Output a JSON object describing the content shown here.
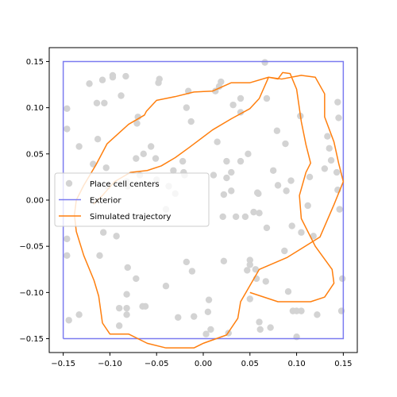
{
  "chart_data": {
    "type": "scatter",
    "xlim": [
      -0.165,
      0.165
    ],
    "ylim": [
      -0.165,
      0.165
    ],
    "xticks": [
      -0.15,
      -0.1,
      -0.05,
      0.0,
      0.05,
      0.1,
      0.15
    ],
    "yticks": [
      -0.15,
      -0.1,
      -0.05,
      0.0,
      0.05,
      0.1,
      0.15
    ],
    "xtick_labels": [
      "−0.15",
      "−0.10",
      "−0.05",
      "0.00",
      "0.05",
      "0.10",
      "0.15"
    ],
    "ytick_labels": [
      "−0.15",
      "−0.10",
      "−0.05",
      "0.00",
      "0.05",
      "0.10",
      "0.15"
    ],
    "grid": false,
    "legend_position": "center-left",
    "legend": [
      {
        "label": "Place cell centers",
        "kind": "marker",
        "color": "#d3d3d3"
      },
      {
        "label": "Exterior",
        "kind": "line",
        "color": "#7b7bf0"
      },
      {
        "label": "Simulated trajectory",
        "kind": "line",
        "color": "#ff7f0e"
      }
    ],
    "place_cell_centers": [
      [
        -0.146,
        0.099
      ],
      [
        -0.146,
        0.077
      ],
      [
        -0.146,
        -0.042
      ],
      [
        -0.146,
        -0.06
      ],
      [
        -0.144,
        -0.13
      ],
      [
        -0.133,
        0.058
      ],
      [
        -0.133,
        -0.124
      ],
      [
        -0.122,
        0.126
      ],
      [
        -0.118,
        0.039
      ],
      [
        -0.114,
        0.105
      ],
      [
        -0.113,
        0.066
      ],
      [
        -0.111,
        -0.06
      ],
      [
        -0.108,
        0.13
      ],
      [
        -0.107,
        -0.035
      ],
      [
        -0.106,
        0.105
      ],
      [
        -0.104,
        0.035
      ],
      [
        -0.103,
        0.015
      ],
      [
        -0.097,
        0.135
      ],
      [
        -0.097,
        0.133
      ],
      [
        -0.093,
        -0.039
      ],
      [
        -0.09,
        -0.117
      ],
      [
        -0.09,
        -0.136
      ],
      [
        -0.088,
        0.113
      ],
      [
        -0.083,
        0.134
      ],
      [
        -0.082,
        0.02
      ],
      [
        -0.081,
        0.015
      ],
      [
        -0.082,
        -0.102
      ],
      [
        -0.082,
        -0.117
      ],
      [
        -0.082,
        -0.124
      ],
      [
        -0.081,
        -0.073
      ],
      [
        -0.072,
        0.045
      ],
      [
        -0.072,
        -0.085
      ],
      [
        -0.071,
        0.083
      ],
      [
        -0.07,
        0.09
      ],
      [
        -0.068,
        0.027
      ],
      [
        -0.065,
        -0.115
      ],
      [
        -0.064,
        0.05
      ],
      [
        -0.062,
        -0.115
      ],
      [
        -0.056,
        0.058
      ],
      [
        -0.051,
        0.045
      ],
      [
        -0.05,
        0.022
      ],
      [
        -0.048,
        0.127
      ],
      [
        -0.047,
        0.131
      ],
      [
        -0.04,
        -0.093
      ],
      [
        -0.04,
        -0.01
      ],
      [
        -0.037,
        0.015
      ],
      [
        -0.032,
        0.032
      ],
      [
        -0.03,
        0.007
      ],
      [
        -0.027,
        -0.127
      ],
      [
        -0.022,
        0.042
      ],
      [
        -0.021,
        0.03
      ],
      [
        -0.02,
        0.027
      ],
      [
        -0.018,
        0.1
      ],
      [
        -0.018,
        -0.067
      ],
      [
        -0.016,
        0.118
      ],
      [
        -0.013,
        0.085
      ],
      [
        -0.012,
        -0.077
      ],
      [
        -0.01,
        -0.126
      ],
      [
        0.003,
        -0.145
      ],
      [
        0.005,
        -0.121
      ],
      [
        0.006,
        -0.108
      ],
      [
        0.008,
        -0.14
      ],
      [
        0.011,
        0.027
      ],
      [
        0.013,
        0.118
      ],
      [
        0.015,
        0.063
      ],
      [
        0.017,
        0.123
      ],
      [
        0.019,
        0.128
      ],
      [
        0.021,
        -0.018
      ],
      [
        0.022,
        -0.066
      ],
      [
        0.022,
        0.006
      ],
      [
        0.025,
        0.042
      ],
      [
        0.025,
        0.024
      ],
      [
        0.027,
        -0.144
      ],
      [
        0.03,
        0.03
      ],
      [
        0.03,
        0.01
      ],
      [
        0.032,
        0.103
      ],
      [
        0.035,
        -0.018
      ],
      [
        0.04,
        0.095
      ],
      [
        0.04,
        0.042
      ],
      [
        0.04,
        0.11
      ],
      [
        0.045,
        -0.018
      ],
      [
        0.047,
        -0.076
      ],
      [
        0.048,
        0.05
      ],
      [
        0.05,
        -0.07
      ],
      [
        0.05,
        -0.065
      ],
      [
        0.05,
        -0.107
      ],
      [
        0.054,
        -0.013
      ],
      [
        0.056,
        -0.075
      ],
      [
        0.057,
        -0.085
      ],
      [
        0.058,
        0.008
      ],
      [
        0.059,
        0.007
      ],
      [
        0.06,
        -0.014
      ],
      [
        0.06,
        -0.132
      ],
      [
        0.061,
        -0.14
      ],
      [
        0.066,
        0.149
      ],
      [
        0.067,
        -0.088
      ],
      [
        0.068,
        0.11
      ],
      [
        0.068,
        -0.03
      ],
      [
        0.072,
        -0.138
      ],
      [
        0.075,
        0.032
      ],
      [
        0.079,
        0.075
      ],
      [
        0.08,
        0.016
      ],
      [
        0.087,
        -0.055
      ],
      [
        0.088,
        0.061
      ],
      [
        0.089,
        0.01
      ],
      [
        0.091,
        -0.099
      ],
      [
        0.094,
        0.021
      ],
      [
        0.095,
        -0.028
      ],
      [
        0.096,
        -0.12
      ],
      [
        0.1,
        -0.12
      ],
      [
        0.1,
        -0.148
      ],
      [
        0.104,
        0.091
      ],
      [
        0.105,
        -0.035
      ],
      [
        0.105,
        -0.12
      ],
      [
        0.112,
        -0.006
      ],
      [
        0.114,
        0.025
      ],
      [
        0.118,
        -0.039
      ],
      [
        0.122,
        -0.124
      ],
      [
        0.13,
        0.034
      ],
      [
        0.133,
        0.069
      ],
      [
        0.135,
        0.056
      ],
      [
        0.137,
        0.043
      ],
      [
        0.143,
        0.03
      ],
      [
        0.144,
        0.011
      ],
      [
        0.144,
        0.106
      ],
      [
        0.145,
        0.089
      ],
      [
        0.146,
        -0.01
      ],
      [
        0.148,
        -0.12
      ],
      [
        0.149,
        -0.085
      ]
    ],
    "exterior": [
      [
        -0.15,
        -0.15
      ],
      [
        0.15,
        -0.15
      ],
      [
        0.15,
        0.15
      ],
      [
        -0.15,
        0.15
      ],
      [
        -0.15,
        -0.15
      ]
    ],
    "trajectory": [
      [
        0.05,
        -0.1
      ],
      [
        0.08,
        -0.11
      ],
      [
        0.115,
        -0.11
      ],
      [
        0.13,
        -0.105
      ],
      [
        0.14,
        -0.09
      ],
      [
        0.138,
        -0.075
      ],
      [
        0.12,
        -0.05
      ],
      [
        0.105,
        -0.02
      ],
      [
        0.103,
        0.005
      ],
      [
        0.11,
        0.03
      ],
      [
        0.115,
        0.04
      ],
      [
        0.11,
        0.06
      ],
      [
        0.105,
        0.085
      ],
      [
        0.1,
        0.12
      ],
      [
        0.093,
        0.137
      ],
      [
        0.085,
        0.138
      ],
      [
        0.08,
        0.131
      ],
      [
        0.07,
        0.133
      ],
      [
        0.05,
        0.127
      ],
      [
        0.03,
        0.127
      ],
      [
        0.01,
        0.118
      ],
      [
        -0.01,
        0.117
      ],
      [
        -0.03,
        0.112
      ],
      [
        -0.05,
        0.108
      ],
      [
        -0.061,
        0.096
      ],
      [
        -0.063,
        0.092
      ],
      [
        -0.08,
        0.082
      ],
      [
        -0.103,
        0.061
      ],
      [
        -0.115,
        0.038
      ],
      [
        -0.128,
        0.016
      ],
      [
        -0.136,
        0.0
      ],
      [
        -0.138,
        -0.016
      ],
      [
        -0.136,
        -0.034
      ],
      [
        -0.128,
        -0.06
      ],
      [
        -0.117,
        -0.087
      ],
      [
        -0.112,
        -0.104
      ],
      [
        -0.108,
        -0.133
      ],
      [
        -0.1,
        -0.145
      ],
      [
        -0.08,
        -0.145
      ],
      [
        -0.06,
        -0.155
      ],
      [
        -0.04,
        -0.16
      ],
      [
        -0.01,
        -0.16
      ],
      [
        0.0,
        -0.155
      ],
      [
        0.025,
        -0.146
      ],
      [
        0.037,
        -0.128
      ],
      [
        0.04,
        -0.11
      ],
      [
        0.06,
        -0.075
      ],
      [
        0.09,
        -0.062
      ],
      [
        0.125,
        -0.04
      ],
      [
        0.14,
        -0.005
      ],
      [
        0.15,
        0.02
      ],
      [
        0.145,
        0.04
      ],
      [
        0.14,
        0.063
      ],
      [
        0.13,
        0.09
      ],
      [
        0.13,
        0.115
      ],
      [
        0.12,
        0.133
      ],
      [
        0.105,
        0.135
      ],
      [
        0.084,
        0.131
      ],
      [
        0.07,
        0.133
      ],
      [
        0.06,
        0.11
      ],
      [
        0.05,
        0.099
      ],
      [
        0.03,
        0.088
      ],
      [
        0.01,
        0.076
      ],
      [
        -0.015,
        0.057
      ],
      [
        -0.03,
        0.046
      ],
      [
        -0.045,
        0.037
      ],
      [
        -0.06,
        0.032
      ],
      [
        -0.078,
        0.03
      ],
      [
        -0.095,
        0.02
      ],
      [
        -0.108,
        0.005
      ],
      [
        -0.117,
        -0.004
      ],
      [
        -0.118,
        -0.004
      ]
    ]
  }
}
